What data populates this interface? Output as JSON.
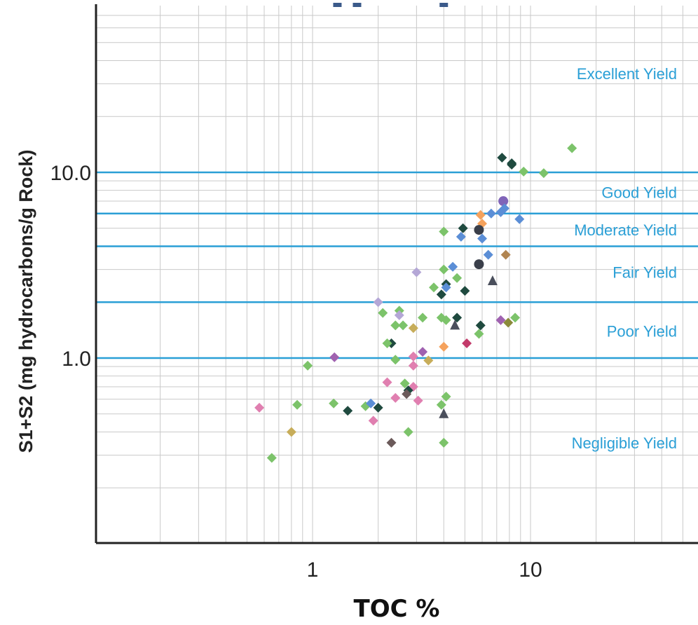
{
  "chart_data": {
    "type": "scatter",
    "title": "",
    "xlabel": "TOC %",
    "ylabel": "S1+S2 (mg hydrocarbons/g Rock)",
    "x_scale": "log",
    "y_scale": "log",
    "xlim": [
      0.1,
      60
    ],
    "ylim": [
      0.1,
      100
    ],
    "x_tick_labels": [
      {
        "value": 1,
        "label": "1"
      },
      {
        "value": 10,
        "label": "10"
      }
    ],
    "y_tick_labels": [
      {
        "value": 1,
        "label": "1.0"
      },
      {
        "value": 10,
        "label": "10.0"
      }
    ],
    "grid": true,
    "threshold_color": "#2a9fd6",
    "thresholds": [
      {
        "value": 10,
        "label": "Good Yield",
        "label_y": 7.8
      },
      {
        "value": 6,
        "label": "Moderate Yield",
        "label_y": 4.9
      },
      {
        "value": 4,
        "label": "Fair Yield",
        "label_y": 2.9
      },
      {
        "value": 2,
        "label": "Poor Yield",
        "label_y": 1.4
      },
      {
        "value": 1,
        "label": "Negligible Yield",
        "label_y": 0.35
      }
    ],
    "top_zone_label": {
      "label": "Excellent Yield",
      "y": 34
    },
    "points": [
      {
        "x": 15.5,
        "y": 13.5,
        "shape": "diamond",
        "color": "#7cc36a"
      },
      {
        "x": 11.5,
        "y": 9.9,
        "shape": "diamond",
        "color": "#7cc36a"
      },
      {
        "x": 9.3,
        "y": 10.1,
        "shape": "diamond",
        "color": "#7cc36a"
      },
      {
        "x": 7.4,
        "y": 12.0,
        "shape": "diamond",
        "color": "#1f4a3f"
      },
      {
        "x": 8.2,
        "y": 11.0,
        "shape": "diamond",
        "color": "#1f4a3f"
      },
      {
        "x": 8.2,
        "y": 11.2,
        "shape": "diamond",
        "color": "#1f4a3f"
      },
      {
        "x": 7.5,
        "y": 7.0,
        "shape": "circle",
        "color": "#8064b8"
      },
      {
        "x": 7.6,
        "y": 6.4,
        "shape": "diamond",
        "color": "#5b8ed6"
      },
      {
        "x": 7.3,
        "y": 6.1,
        "shape": "diamond",
        "color": "#5b8ed6"
      },
      {
        "x": 6.6,
        "y": 6.0,
        "shape": "diamond",
        "color": "#5b8ed6"
      },
      {
        "x": 8.9,
        "y": 5.6,
        "shape": "diamond",
        "color": "#5b8ed6"
      },
      {
        "x": 5.9,
        "y": 5.9,
        "shape": "diamond",
        "color": "#f5a25d"
      },
      {
        "x": 6.0,
        "y": 5.3,
        "shape": "diamond",
        "color": "#f5a25d"
      },
      {
        "x": 5.8,
        "y": 4.9,
        "shape": "circle",
        "color": "#3a3f4a"
      },
      {
        "x": 4.9,
        "y": 5.0,
        "shape": "diamond",
        "color": "#1f4a3f"
      },
      {
        "x": 6.0,
        "y": 4.4,
        "shape": "diamond",
        "color": "#5b8ed6"
      },
      {
        "x": 4.8,
        "y": 4.5,
        "shape": "diamond",
        "color": "#5b8ed6"
      },
      {
        "x": 4.0,
        "y": 4.8,
        "shape": "diamond",
        "color": "#7cc36a"
      },
      {
        "x": 6.4,
        "y": 3.6,
        "shape": "diamond",
        "color": "#5b8ed6"
      },
      {
        "x": 7.7,
        "y": 3.6,
        "shape": "diamond",
        "color": "#b08450"
      },
      {
        "x": 5.8,
        "y": 3.2,
        "shape": "circle",
        "color": "#3a3f4a"
      },
      {
        "x": 4.4,
        "y": 3.1,
        "shape": "diamond",
        "color": "#5b8ed6"
      },
      {
        "x": 4.0,
        "y": 3.0,
        "shape": "diamond",
        "color": "#7cc36a"
      },
      {
        "x": 4.6,
        "y": 2.7,
        "shape": "diamond",
        "color": "#7cc36a"
      },
      {
        "x": 3.0,
        "y": 2.9,
        "shape": "diamond",
        "color": "#b4a7d6"
      },
      {
        "x": 4.1,
        "y": 2.5,
        "shape": "diamond",
        "color": "#1f4a3f"
      },
      {
        "x": 4.1,
        "y": 2.4,
        "shape": "diamond",
        "color": "#5b8ed6"
      },
      {
        "x": 3.6,
        "y": 2.4,
        "shape": "diamond",
        "color": "#7cc36a"
      },
      {
        "x": 5.0,
        "y": 2.3,
        "shape": "diamond",
        "color": "#1f4a3f"
      },
      {
        "x": 3.9,
        "y": 2.2,
        "shape": "diamond",
        "color": "#1f4a3f"
      },
      {
        "x": 6.7,
        "y": 2.6,
        "shape": "triangle",
        "color": "#4a4f5c"
      },
      {
        "x": 2.0,
        "y": 2.0,
        "shape": "diamond",
        "color": "#b4a7d6"
      },
      {
        "x": 2.5,
        "y": 1.8,
        "shape": "diamond",
        "color": "#7cc36a"
      },
      {
        "x": 2.1,
        "y": 1.75,
        "shape": "diamond",
        "color": "#7cc36a"
      },
      {
        "x": 2.5,
        "y": 1.7,
        "shape": "diamond",
        "color": "#b4a7d6"
      },
      {
        "x": 3.2,
        "y": 1.65,
        "shape": "diamond",
        "color": "#7cc36a"
      },
      {
        "x": 3.9,
        "y": 1.65,
        "shape": "diamond",
        "color": "#7cc36a"
      },
      {
        "x": 4.1,
        "y": 1.6,
        "shape": "diamond",
        "color": "#7cc36a"
      },
      {
        "x": 4.6,
        "y": 1.65,
        "shape": "diamond",
        "color": "#1f4a3f"
      },
      {
        "x": 4.5,
        "y": 1.5,
        "shape": "triangle",
        "color": "#4a4f5c"
      },
      {
        "x": 5.9,
        "y": 1.5,
        "shape": "diamond",
        "color": "#1f4a3f"
      },
      {
        "x": 7.3,
        "y": 1.6,
        "shape": "diamond",
        "color": "#a062b0"
      },
      {
        "x": 7.9,
        "y": 1.55,
        "shape": "diamond",
        "color": "#8a8a3a"
      },
      {
        "x": 8.5,
        "y": 1.65,
        "shape": "diamond",
        "color": "#7cc36a"
      },
      {
        "x": 5.8,
        "y": 1.35,
        "shape": "diamond",
        "color": "#7cc36a"
      },
      {
        "x": 2.4,
        "y": 1.5,
        "shape": "diamond",
        "color": "#7cc36a"
      },
      {
        "x": 2.6,
        "y": 1.5,
        "shape": "diamond",
        "color": "#7cc36a"
      },
      {
        "x": 2.9,
        "y": 1.45,
        "shape": "diamond",
        "color": "#c7ad5a"
      },
      {
        "x": 2.3,
        "y": 1.2,
        "shape": "diamond",
        "color": "#1f4a3f"
      },
      {
        "x": 2.2,
        "y": 1.2,
        "shape": "diamond",
        "color": "#7cc36a"
      },
      {
        "x": 5.1,
        "y": 1.2,
        "shape": "diamond",
        "color": "#c23a6a"
      },
      {
        "x": 4.0,
        "y": 1.15,
        "shape": "diamond",
        "color": "#f5a25d"
      },
      {
        "x": 3.2,
        "y": 1.08,
        "shape": "diamond",
        "color": "#a062b0"
      },
      {
        "x": 2.9,
        "y": 1.02,
        "shape": "diamond",
        "color": "#e07fb0"
      },
      {
        "x": 2.4,
        "y": 0.98,
        "shape": "diamond",
        "color": "#7cc36a"
      },
      {
        "x": 3.4,
        "y": 0.97,
        "shape": "diamond",
        "color": "#c7ad5a"
      },
      {
        "x": 2.9,
        "y": 0.91,
        "shape": "diamond",
        "color": "#e07fb0"
      },
      {
        "x": 1.26,
        "y": 1.01,
        "shape": "diamond",
        "color": "#a062b0"
      },
      {
        "x": 0.95,
        "y": 0.91,
        "shape": "diamond",
        "color": "#7cc36a"
      },
      {
        "x": 2.2,
        "y": 0.74,
        "shape": "diamond",
        "color": "#e07fb0"
      },
      {
        "x": 2.65,
        "y": 0.73,
        "shape": "diamond",
        "color": "#7cc36a"
      },
      {
        "x": 2.9,
        "y": 0.7,
        "shape": "diamond",
        "color": "#e07fb0"
      },
      {
        "x": 2.75,
        "y": 0.67,
        "shape": "diamond",
        "color": "#1f4a3f"
      },
      {
        "x": 2.7,
        "y": 0.64,
        "shape": "diamond",
        "color": "#6b5a5a"
      },
      {
        "x": 2.4,
        "y": 0.61,
        "shape": "diamond",
        "color": "#e07fb0"
      },
      {
        "x": 3.05,
        "y": 0.59,
        "shape": "diamond",
        "color": "#e07fb0"
      },
      {
        "x": 4.1,
        "y": 0.62,
        "shape": "diamond",
        "color": "#7cc36a"
      },
      {
        "x": 3.9,
        "y": 0.56,
        "shape": "diamond",
        "color": "#7cc36a"
      },
      {
        "x": 4.0,
        "y": 0.5,
        "shape": "triangle",
        "color": "#4a4f5c"
      },
      {
        "x": 1.25,
        "y": 0.57,
        "shape": "diamond",
        "color": "#7cc36a"
      },
      {
        "x": 1.45,
        "y": 0.52,
        "shape": "diamond",
        "color": "#1f4a3f"
      },
      {
        "x": 1.75,
        "y": 0.55,
        "shape": "diamond",
        "color": "#7cc36a"
      },
      {
        "x": 1.85,
        "y": 0.57,
        "shape": "diamond",
        "color": "#5b8ed6"
      },
      {
        "x": 2.0,
        "y": 0.54,
        "shape": "diamond",
        "color": "#1f4a3f"
      },
      {
        "x": 1.9,
        "y": 0.46,
        "shape": "diamond",
        "color": "#e07fb0"
      },
      {
        "x": 0.85,
        "y": 0.56,
        "shape": "diamond",
        "color": "#7cc36a"
      },
      {
        "x": 0.57,
        "y": 0.54,
        "shape": "diamond",
        "color": "#e07fb0"
      },
      {
        "x": 0.8,
        "y": 0.4,
        "shape": "diamond",
        "color": "#c7ad5a"
      },
      {
        "x": 2.75,
        "y": 0.4,
        "shape": "diamond",
        "color": "#7cc36a"
      },
      {
        "x": 2.3,
        "y": 0.35,
        "shape": "diamond",
        "color": "#6b5a5a"
      },
      {
        "x": 4.0,
        "y": 0.35,
        "shape": "diamond",
        "color": "#7cc36a"
      },
      {
        "x": 0.65,
        "y": 0.29,
        "shape": "diamond",
        "color": "#7cc36a"
      },
      {
        "x": 1.3,
        "y": 100,
        "shape": "square",
        "color": "#3b5a8a"
      },
      {
        "x": 1.6,
        "y": 100,
        "shape": "square",
        "color": "#3b5a8a"
      },
      {
        "x": 4.0,
        "y": 100,
        "shape": "square",
        "color": "#3b5a8a"
      }
    ]
  }
}
